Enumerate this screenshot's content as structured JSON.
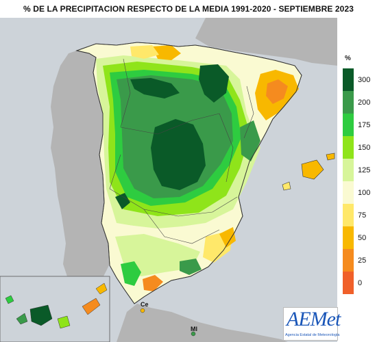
{
  "title": "%  DE LA PRECIPITACION RESPECTO DE LA MEDIA 1991-2020 - SEPTIEMBRE  2023",
  "legend": {
    "unit": "%",
    "items": [
      {
        "label": "300",
        "color": "#0a5a28"
      },
      {
        "label": "200",
        "color": "#3a9a4a"
      },
      {
        "label": "175",
        "color": "#2ecc40"
      },
      {
        "label": "150",
        "color": "#8fe41a"
      },
      {
        "label": "125",
        "color": "#d7f59a"
      },
      {
        "label": "100",
        "color": "#fafad2"
      },
      {
        "label": "75",
        "color": "#ffe86a"
      },
      {
        "label": "50",
        "color": "#f8b800"
      },
      {
        "label": "25",
        "color": "#f58b1f"
      },
      {
        "label": "0",
        "color": "#f0602a"
      }
    ]
  },
  "places": {
    "ceuta": "Ce",
    "melilla": "Ml"
  },
  "logo": {
    "name": "AEMet",
    "subtitle": "Agencia Estatal de Meteorología"
  },
  "colors": {
    "sea": "#cdd3d9",
    "land_other": "#b4b4b4",
    "border": "#333333"
  }
}
